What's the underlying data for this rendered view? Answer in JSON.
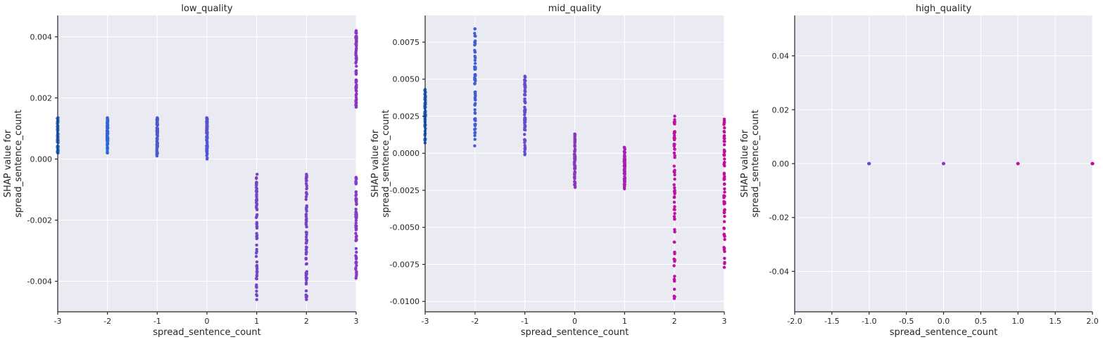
{
  "chart_data": [
    {
      "type": "scatter",
      "title": "low_quality",
      "xlabel": "spread_sentence_count",
      "ylabel": [
        "SHAP value for",
        "spread_sentence_count"
      ],
      "xlim": [
        -3,
        3
      ],
      "ylim": [
        -0.005,
        0.0047
      ],
      "xticks": [
        -3,
        -2,
        -1,
        0,
        1,
        2,
        3
      ],
      "xtick_labels": [
        "-3",
        "-2",
        "-1",
        "0",
        "1",
        "2",
        "3"
      ],
      "yticks": [
        -0.004,
        -0.002,
        0.0,
        0.002,
        0.004
      ],
      "ytick_labels": [
        "-0.004",
        "-0.002",
        "0.000",
        "0.002",
        "0.004"
      ],
      "grid": true,
      "colormap": [
        "#1f6ed6",
        "#7a43c8",
        "#c70a9e"
      ],
      "columns": [
        {
          "x": -3,
          "min": 0.0002,
          "max": 0.00135,
          "c": 0.0
        },
        {
          "x": -2,
          "min": 0.0002,
          "max": 0.00135,
          "c": 0.1
        },
        {
          "x": -1,
          "min": 0.0001,
          "max": 0.00135,
          "c": 0.25
        },
        {
          "x": 0,
          "min": 0.0,
          "max": 0.00135,
          "c": 0.3
        },
        {
          "x": 1,
          "min": -0.0046,
          "max": -0.0005,
          "c": 0.45
        },
        {
          "x": 2,
          "min": -0.0046,
          "max": -0.0005,
          "c": 0.5
        },
        {
          "x": 3,
          "min": -0.0039,
          "max": -0.0006,
          "c": 0.55
        },
        {
          "x": 3,
          "min": 0.0017,
          "max": 0.0042,
          "c": 0.6
        }
      ]
    },
    {
      "type": "scatter",
      "title": "mid_quality",
      "xlabel": "spread_sentence_count",
      "ylabel": [
        "SHAP value for",
        "spread_sentence_count"
      ],
      "xlim": [
        -3,
        3
      ],
      "ylim": [
        -0.0107,
        0.0093
      ],
      "xticks": [
        -3,
        -2,
        -1,
        0,
        1,
        2,
        3
      ],
      "xtick_labels": [
        "-3",
        "-2",
        "-1",
        "0",
        "1",
        "2",
        "3"
      ],
      "yticks": [
        -0.01,
        -0.0075,
        -0.005,
        -0.0025,
        0.0,
        0.0025,
        0.005,
        0.0075
      ],
      "ytick_labels": [
        "-0.0100",
        "-0.0075",
        "-0.0050",
        "-0.0025",
        "0.0000",
        "0.0025",
        "0.0050",
        "0.0075"
      ],
      "grid": true,
      "colormap": [
        "#1f6ed6",
        "#7a43c8",
        "#c70a9e"
      ],
      "columns": [
        {
          "x": -3,
          "min": 0.0007,
          "max": 0.0043,
          "c": 0.0
        },
        {
          "x": -2,
          "min": 0.0005,
          "max": 0.0084,
          "c": 0.2
        },
        {
          "x": -1,
          "min": -0.0001,
          "max": 0.0052,
          "c": 0.4
        },
        {
          "x": 0,
          "min": -0.0023,
          "max": 0.0013,
          "c": 0.6
        },
        {
          "x": 1,
          "min": -0.0024,
          "max": 0.0004,
          "c": 0.8
        },
        {
          "x": 2,
          "min": -0.0098,
          "max": 0.0025,
          "c": 0.95
        },
        {
          "x": 3,
          "min": -0.0077,
          "max": 0.0023,
          "c": 1.0
        }
      ]
    },
    {
      "type": "scatter",
      "title": "high_quality",
      "xlabel": "spread_sentence_count",
      "ylabel": [
        "SHAP value for",
        "spread_sentence_count"
      ],
      "xlim": [
        -2,
        2
      ],
      "ylim": [
        -0.055,
        0.055
      ],
      "xticks": [
        -2,
        -1.5,
        -1,
        -0.5,
        0,
        0.5,
        1,
        1.5,
        2
      ],
      "xtick_labels": [
        "-2.0",
        "-1.5",
        "-1.0",
        "-0.5",
        "0.0",
        "0.5",
        "1.0",
        "1.5",
        "2.0"
      ],
      "yticks": [
        -0.04,
        -0.02,
        0.0,
        0.02,
        0.04
      ],
      "ytick_labels": [
        "-0.04",
        "-0.02",
        "0.00",
        "0.02",
        "0.04"
      ],
      "grid": true,
      "colormap": [
        "#1f6ed6",
        "#7a43c8",
        "#c70a9e"
      ],
      "columns": [
        {
          "x": -1,
          "min": 0.0,
          "max": 0.0,
          "c": 0.4
        },
        {
          "x": 0,
          "min": 0.0,
          "max": 0.0,
          "c": 0.6
        },
        {
          "x": 1,
          "min": 0.0,
          "max": 0.0,
          "c": 0.85
        },
        {
          "x": 2,
          "min": 0.0,
          "max": 0.0,
          "c": 1.0
        }
      ]
    }
  ]
}
